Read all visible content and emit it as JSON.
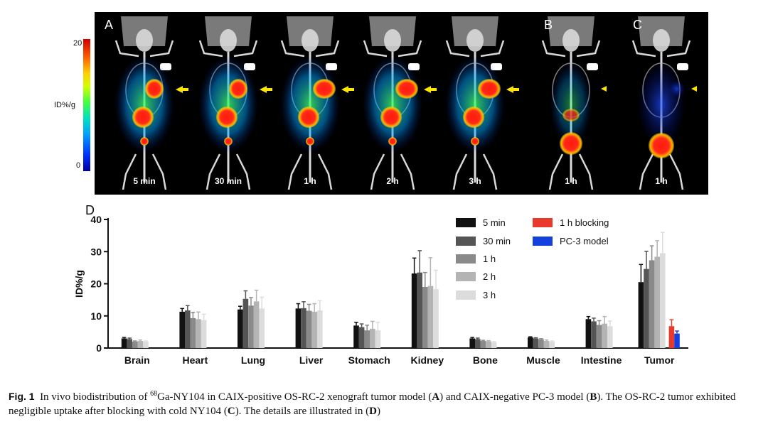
{
  "panels": {
    "labels": [
      "A",
      "B",
      "C",
      "D"
    ],
    "colorbar": {
      "max": "20",
      "min": "0",
      "unit": "ID%/g"
    },
    "mice": [
      {
        "time": "5 min",
        "group": "A"
      },
      {
        "time": "30 min",
        "group": "A"
      },
      {
        "time": "1 h",
        "group": "A"
      },
      {
        "time": "2 h",
        "group": "A"
      },
      {
        "time": "3 h",
        "group": "A"
      },
      {
        "time": "1 h",
        "group": "B"
      },
      {
        "time": "1 h",
        "group": "C"
      }
    ],
    "colors": {
      "arrow": "#ffe600",
      "hot": "#ff2a1a",
      "bone": "#d9d9d9"
    }
  },
  "chart_data": {
    "type": "bar",
    "panel_label": "D",
    "ylabel": "ID%/g",
    "xlabel": "",
    "ylim": [
      0,
      40
    ],
    "yticks": [
      0,
      10,
      20,
      30,
      40
    ],
    "grid": false,
    "legend_position": "top-right",
    "categories": [
      "Brain",
      "Heart",
      "Lung",
      "Liver",
      "Stomach",
      "Kidney",
      "Bone",
      "Muscle",
      "Intestine",
      "Tumor"
    ],
    "series": [
      {
        "name": "5 min",
        "color": "#111111",
        "values": [
          3.0,
          11.3,
          12.0,
          12.3,
          7.0,
          23.2,
          3.0,
          3.3,
          9.0,
          20.5
        ],
        "errors": [
          0.3,
          1.0,
          1.0,
          1.5,
          1.0,
          4.8,
          0.3,
          0.2,
          0.8,
          5.5
        ]
      },
      {
        "name": "30 min",
        "color": "#555555",
        "values": [
          2.8,
          11.7,
          15.3,
          12.4,
          6.5,
          23.5,
          2.8,
          3.0,
          8.3,
          24.6
        ],
        "errors": [
          0.3,
          1.5,
          2.5,
          2.0,
          1.0,
          6.8,
          0.3,
          0.2,
          1.0,
          5.5
        ]
      },
      {
        "name": "1 h",
        "color": "#8a8a8a",
        "values": [
          2.0,
          9.3,
          13.2,
          11.6,
          5.5,
          19.0,
          2.2,
          2.7,
          7.2,
          27.3
        ],
        "errors": [
          0.2,
          1.8,
          2.5,
          2.0,
          1.6,
          4.5,
          0.2,
          0.2,
          1.3,
          4.5
        ]
      },
      {
        "name": "2 h",
        "color": "#b4b4b4",
        "values": [
          2.2,
          9.0,
          14.5,
          11.3,
          6.0,
          19.3,
          2.1,
          2.2,
          7.6,
          28.4
        ],
        "errors": [
          0.3,
          2.2,
          3.5,
          2.5,
          2.3,
          8.8,
          0.2,
          0.3,
          2.2,
          5.0
        ]
      },
      {
        "name": "3 h",
        "color": "#dcdcdc",
        "values": [
          2.0,
          8.7,
          12.3,
          11.7,
          5.5,
          18.3,
          1.8,
          2.0,
          6.8,
          29.5
        ],
        "errors": [
          0.2,
          1.8,
          3.5,
          3.0,
          2.5,
          5.9,
          0.2,
          0.2,
          1.6,
          6.5
        ]
      },
      {
        "name": "1 h blocking",
        "color": "#e8392b",
        "values": [
          null,
          null,
          null,
          null,
          null,
          null,
          null,
          null,
          null,
          6.8
        ],
        "errors": [
          null,
          null,
          null,
          null,
          null,
          null,
          null,
          null,
          null,
          2.0
        ]
      },
      {
        "name": "PC-3 model",
        "color": "#1440e0",
        "values": [
          null,
          null,
          null,
          null,
          null,
          null,
          null,
          null,
          null,
          4.5
        ],
        "errors": [
          null,
          null,
          null,
          null,
          null,
          null,
          null,
          null,
          null,
          0.8
        ]
      }
    ]
  },
  "caption": {
    "fig_label": "Fig. 1",
    "p1": "In vivo biodistribution of ",
    "sup": "68",
    "p2": "Ga-NY104 in CAIX-positive OS-RC-2 xenograft tumor model (",
    "r1": "A",
    "p3": ") and CAIX-negative PC-3 model (",
    "r2": "B",
    "p4": "). The OS-RC-2 tumor exhibited negligible uptake after blocking with cold NY104 (",
    "r3": "C",
    "p5": "). The details are illustrated in (",
    "r4": "D",
    "p6": ")"
  }
}
